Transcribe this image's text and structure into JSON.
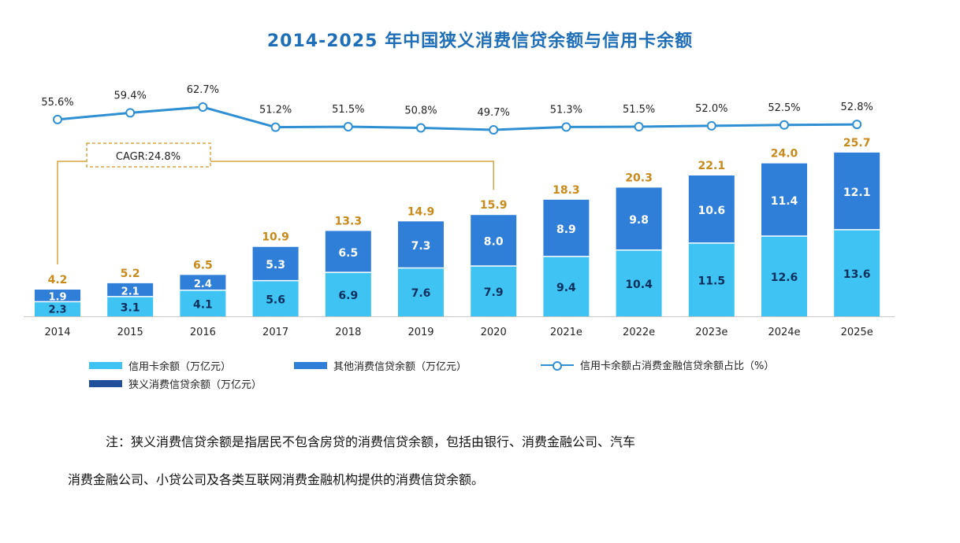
{
  "title": "2014-2025 年中国狭义消费信贷余额与信用卡余额",
  "cagr_label": "CAGR:24.8%",
  "legend": {
    "credit": "信用卡余额（万亿元）",
    "other": "其他消费信贷余额（万亿元）",
    "ratio": "信用卡余额占消费金融信贷余额占比（%）",
    "total": "狭义消费信贷余额（万亿元）"
  },
  "note": {
    "line1": "注：狭义消费信贷余额是指居民不包含房贷的消费信贷余额，包括由银行、消费金融公司、汽车",
    "line2": "消费金融公司、小贷公司及各类互联网消费金融机构提供的消费信贷余额。"
  },
  "colors": {
    "credit": "#3fc3f2",
    "other": "#2f7fd9",
    "total": "#1f4f9a",
    "line": "#2e8fd3",
    "title": "#1f6fb8",
    "total_label": "#c88a1a",
    "cagr": "#d9a441"
  },
  "chart_data": {
    "type": "bar",
    "stacked": true,
    "categories": [
      "2014",
      "2015",
      "2016",
      "2017",
      "2018",
      "2019",
      "2020",
      "2021e",
      "2022e",
      "2023e",
      "2024e",
      "2025e"
    ],
    "series": [
      {
        "name": "信用卡余额（万亿元）",
        "values": [
          2.3,
          3.1,
          4.1,
          5.6,
          6.9,
          7.6,
          7.9,
          9.4,
          10.4,
          11.5,
          12.6,
          13.6
        ]
      },
      {
        "name": "其他消费信贷余额（万亿元）",
        "values": [
          1.9,
          2.1,
          2.4,
          5.3,
          6.5,
          7.3,
          8.0,
          8.9,
          9.8,
          10.6,
          11.4,
          12.1
        ]
      }
    ],
    "totals": [
      4.2,
      5.2,
      6.5,
      10.9,
      13.3,
      14.9,
      15.9,
      18.3,
      20.3,
      22.1,
      24.0,
      25.7
    ],
    "line_series": {
      "name": "信用卡余额占消费金融信贷余额占比（%）",
      "values": [
        55.6,
        59.4,
        62.7,
        51.2,
        51.5,
        50.8,
        49.7,
        51.3,
        51.5,
        52.0,
        52.5,
        52.8
      ],
      "labels": [
        "55.6%",
        "59.4%",
        "62.7%",
        "51.2%",
        "51.5%",
        "50.8%",
        "49.7%",
        "51.3%",
        "51.5%",
        "52.0%",
        "52.5%",
        "52.8%"
      ]
    },
    "annotation": "CAGR:24.8%",
    "annotation_span": [
      "2014",
      "2020"
    ]
  }
}
